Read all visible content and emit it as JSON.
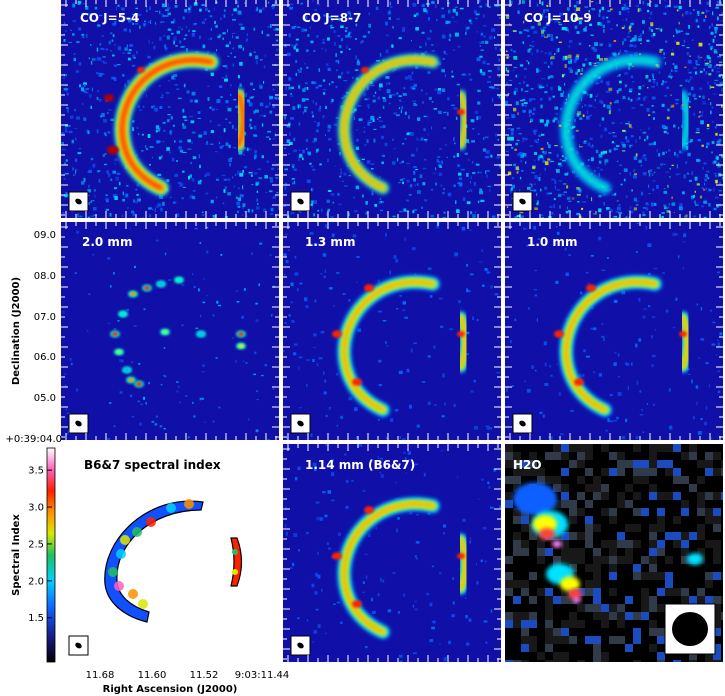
{
  "panels": [
    {
      "title": "CO J=5-4",
      "colormap": "jet",
      "style": "noisy-strong",
      "beam": "small"
    },
    {
      "title": "CO J=8-7",
      "colormap": "jet",
      "style": "noisy-medium",
      "beam": "small"
    },
    {
      "title": "CO J=10-9",
      "colormap": "jet",
      "style": "noisy-weak",
      "beam": "small"
    },
    {
      "title": "2.0 mm",
      "colormap": "jet",
      "style": "clumpy",
      "beam": "small"
    },
    {
      "title": "1.3 mm",
      "colormap": "jet",
      "style": "smooth",
      "beam": "small"
    },
    {
      "title": "1.0 mm",
      "colormap": "jet",
      "style": "smooth",
      "beam": "small"
    },
    {
      "title": "B6&7 spectral index",
      "colormap": "jet",
      "style": "index",
      "beam": "small"
    },
    {
      "title": "1.14 mm (B6&7)",
      "colormap": "jet",
      "style": "smooth",
      "beam": "small"
    },
    {
      "title": "H2O",
      "colormap": "heat",
      "style": "coarse",
      "beam": "large"
    }
  ],
  "axes": {
    "ylabel": "Declination (J2000)",
    "xlabel": "Right Ascension (J2000)",
    "yticks": [
      "09.0",
      "08.0",
      "07.0",
      "06.0",
      "05.0",
      "+0:39:04.0"
    ],
    "xticks": [
      "11.68",
      "11.60",
      "11.52",
      "9:03:11.44"
    ]
  },
  "colorbar": {
    "label": "Spectral Index",
    "ticks": [
      "3.5",
      "3.0",
      "2.5",
      "2.0",
      "1.5"
    ],
    "range": [
      0.9,
      3.8
    ]
  },
  "colors": {
    "jet_background": "#1010a8",
    "panel_border": "#ffffff",
    "title_on_dark": "#ffffff",
    "title_on_light": "#000000"
  }
}
